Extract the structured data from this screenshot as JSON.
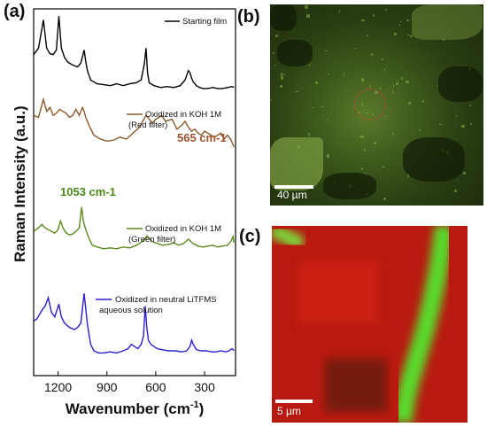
{
  "panels": {
    "a": "(a)",
    "b": "(b)",
    "c": "(c)"
  },
  "chart_data": {
    "type": "line",
    "xlabel": "Wavenumber (cm-1)",
    "ylabel": "Raman Intensity (a.u.)",
    "xlim": [
      1350,
      110
    ],
    "x_ticks": [
      1200,
      900,
      600,
      300
    ],
    "series": [
      {
        "name": "Starting film",
        "color": "#000000",
        "x": [
          1350,
          1320,
          1290,
          1270,
          1250,
          1230,
          1210,
          1195,
          1180,
          1160,
          1140,
          1110,
          1080,
          1060,
          1040,
          1030,
          1020,
          1000,
          960,
          920,
          880,
          840,
          800,
          760,
          720,
          690,
          670,
          660,
          650,
          640,
          610,
          570,
          530,
          490,
          450,
          420,
          400,
          390,
          380,
          370,
          350,
          330,
          310,
          280,
          250,
          220,
          190,
          160,
          130,
          120
        ],
        "y": [
          0.55,
          0.62,
          0.92,
          0.62,
          0.56,
          0.55,
          0.6,
          0.96,
          0.62,
          0.52,
          0.47,
          0.44,
          0.42,
          0.46,
          0.6,
          0.48,
          0.38,
          0.28,
          0.24,
          0.23,
          0.22,
          0.24,
          0.22,
          0.24,
          0.25,
          0.28,
          0.45,
          0.62,
          0.35,
          0.25,
          0.22,
          0.2,
          0.21,
          0.2,
          0.22,
          0.28,
          0.38,
          0.36,
          0.3,
          0.26,
          0.22,
          0.2,
          0.19,
          0.19,
          0.2,
          0.19,
          0.19,
          0.2,
          0.21,
          0.2
        ]
      },
      {
        "name": "Oxidized in KOH 1M (Red filter)",
        "color": "#8b5a2b",
        "x": [
          1350,
          1320,
          1290,
          1270,
          1250,
          1230,
          1210,
          1190,
          1170,
          1150,
          1130,
          1110,
          1090,
          1070,
          1050,
          1040,
          1030,
          1010,
          980,
          940,
          900,
          860,
          820,
          780,
          740,
          700,
          680,
          660,
          640,
          620,
          600,
          580,
          565,
          540,
          500,
          470,
          440,
          420,
          400,
          380,
          360,
          340,
          320,
          300,
          280,
          260,
          240,
          220,
          200,
          180,
          160,
          140,
          120
        ],
        "y": [
          0.82,
          0.8,
          0.98,
          0.86,
          0.9,
          0.82,
          0.84,
          0.88,
          0.86,
          0.84,
          0.8,
          0.82,
          0.88,
          0.82,
          0.9,
          0.86,
          0.8,
          0.72,
          0.62,
          0.58,
          0.56,
          0.57,
          0.6,
          0.58,
          0.64,
          0.7,
          0.76,
          0.82,
          0.78,
          0.74,
          0.78,
          0.8,
          0.82,
          0.76,
          0.78,
          0.68,
          0.72,
          0.76,
          0.7,
          0.66,
          0.68,
          0.64,
          0.62,
          0.66,
          0.64,
          0.62,
          0.6,
          0.62,
          0.64,
          0.58,
          0.62,
          0.58,
          0.5
        ]
      },
      {
        "name": "Oxidized in KOH 1M (Green filter)",
        "color": "#5a8a1c",
        "x": [
          1350,
          1320,
          1300,
          1280,
          1260,
          1240,
          1220,
          1200,
          1185,
          1170,
          1150,
          1130,
          1110,
          1090,
          1070,
          1055,
          1045,
          1030,
          1010,
          990,
          960,
          920,
          880,
          840,
          800,
          760,
          730,
          700,
          670,
          655,
          640,
          620,
          590,
          560,
          520,
          490,
          460,
          430,
          400,
          370,
          340,
          310,
          280,
          250,
          220,
          190,
          160,
          140,
          125,
          120
        ],
        "y": [
          0.58,
          0.62,
          0.66,
          0.62,
          0.6,
          0.58,
          0.56,
          0.6,
          0.7,
          0.62,
          0.56,
          0.54,
          0.55,
          0.58,
          0.62,
          0.86,
          0.7,
          0.6,
          0.5,
          0.42,
          0.4,
          0.38,
          0.39,
          0.38,
          0.4,
          0.39,
          0.41,
          0.44,
          0.48,
          0.53,
          0.5,
          0.46,
          0.44,
          0.42,
          0.43,
          0.45,
          0.42,
          0.44,
          0.49,
          0.44,
          0.41,
          0.4,
          0.41,
          0.42,
          0.4,
          0.41,
          0.42,
          0.46,
          0.52,
          0.45
        ]
      },
      {
        "name": "Oxidized in neutral LiTFMS aqueous solution",
        "color": "#2a1fd0",
        "x": [
          1350,
          1330,
          1300,
          1280,
          1260,
          1240,
          1220,
          1195,
          1180,
          1160,
          1130,
          1100,
          1080,
          1060,
          1040,
          1030,
          1020,
          1000,
          980,
          950,
          920,
          880,
          840,
          800,
          770,
          750,
          730,
          710,
          690,
          675,
          665,
          655,
          645,
          630,
          610,
          590,
          560,
          520,
          480,
          440,
          410,
          390,
          380,
          370,
          350,
          320,
          290,
          260,
          230,
          200,
          170,
          150,
          130,
          120
        ],
        "y": [
          0.48,
          0.5,
          0.58,
          0.62,
          0.7,
          0.56,
          0.52,
          0.64,
          0.52,
          0.46,
          0.42,
          0.4,
          0.42,
          0.46,
          0.74,
          0.6,
          0.45,
          0.26,
          0.2,
          0.18,
          0.18,
          0.19,
          0.18,
          0.2,
          0.22,
          0.26,
          0.24,
          0.22,
          0.26,
          0.34,
          0.62,
          0.42,
          0.3,
          0.26,
          0.24,
          0.22,
          0.21,
          0.2,
          0.2,
          0.19,
          0.2,
          0.24,
          0.3,
          0.26,
          0.21,
          0.2,
          0.2,
          0.19,
          0.19,
          0.2,
          0.19,
          0.2,
          0.22,
          0.2
        ]
      }
    ],
    "legend": [
      "Starting film",
      "Oxidized in KOH 1M",
      "(Red filter)",
      "Oxidized in KOH 1M",
      "(Green filter)",
      "Oxidized in neutral LiTFMS",
      "aqueous solution"
    ],
    "annotations": [
      {
        "text": "565 cm-1",
        "color": "#a0522d"
      },
      {
        "text": "1053 cm-1",
        "color": "#4a8a1a"
      }
    ]
  },
  "scalebars": {
    "b": "40 µm",
    "c": "5 µm"
  }
}
